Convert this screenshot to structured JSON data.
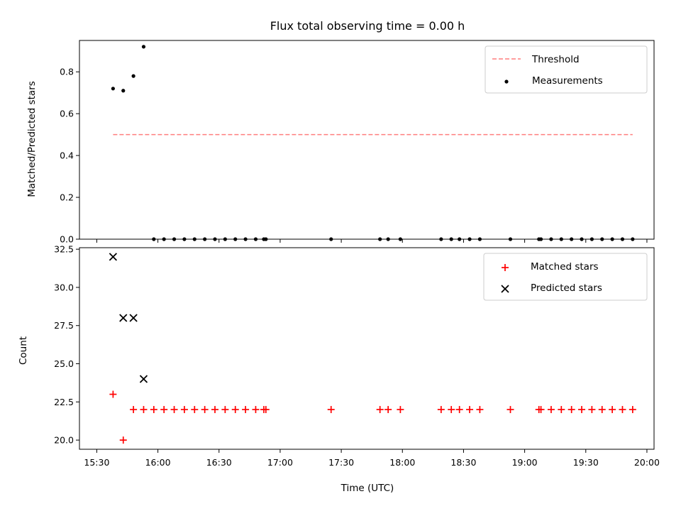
{
  "chart_data": [
    {
      "type": "scatter",
      "title": "Flux total observing time = 0.00 h",
      "xlabel": "",
      "ylabel": "Matched/Predicted stars",
      "xlim": [
        "15:30",
        "20:00"
      ],
      "ylim": [
        0,
        0.95
      ],
      "yticks": [
        "0.0",
        "0.2",
        "0.4",
        "0.6",
        "0.8"
      ],
      "ytick_values": [
        0,
        0.2,
        0.4,
        0.6,
        0.8
      ],
      "legend_position": "top-right",
      "series": [
        {
          "name": "Threshold",
          "style": "dashed-line",
          "color": "#ff7f7f",
          "x": [
            "15:38",
            "19:53"
          ],
          "y": [
            0.5,
            0.5
          ]
        },
        {
          "name": "Measurements",
          "style": "dot",
          "color": "#000000",
          "x": [
            "15:38",
            "15:43",
            "15:48",
            "15:53",
            "15:58",
            "16:03",
            "16:08",
            "16:13",
            "16:18",
            "16:23",
            "16:28",
            "16:33",
            "16:38",
            "16:43",
            "16:48",
            "16:52",
            "16:53",
            "17:25",
            "17:49",
            "17:53",
            "17:59",
            "18:19",
            "18:24",
            "18:28",
            "18:33",
            "18:38",
            "18:53",
            "19:07",
            "19:08",
            "19:13",
            "19:18",
            "19:23",
            "19:28",
            "19:33",
            "19:38",
            "19:43",
            "19:48",
            "19:53"
          ],
          "y": [
            0.72,
            0.71,
            0.78,
            0.92,
            0,
            0,
            0,
            0,
            0,
            0,
            0,
            0,
            0,
            0,
            0,
            0,
            0,
            0,
            0,
            0,
            0,
            0,
            0,
            0,
            0,
            0,
            0,
            0,
            0,
            0,
            0,
            0,
            0,
            0,
            0,
            0,
            0,
            0
          ]
        }
      ]
    },
    {
      "type": "scatter",
      "title": "",
      "xlabel": "Time (UTC)",
      "ylabel": "Count",
      "xlim": [
        "15:30",
        "20:00"
      ],
      "xticks": [
        "15:30",
        "16:00",
        "16:30",
        "17:00",
        "17:30",
        "18:00",
        "18:30",
        "19:00",
        "19:30",
        "20:00"
      ],
      "ylim": [
        19.4,
        32.6
      ],
      "yticks": [
        "20.0",
        "22.5",
        "25.0",
        "27.5",
        "30.0",
        "32.5"
      ],
      "ytick_values": [
        20,
        22.5,
        25,
        27.5,
        30,
        32.5
      ],
      "legend_position": "top-right",
      "series": [
        {
          "name": "Matched stars",
          "style": "plus",
          "color": "#ff0000",
          "x": [
            "15:38",
            "15:43",
            "15:48",
            "15:53",
            "15:58",
            "16:03",
            "16:08",
            "16:13",
            "16:18",
            "16:23",
            "16:28",
            "16:33",
            "16:38",
            "16:43",
            "16:48",
            "16:52",
            "16:53",
            "17:25",
            "17:49",
            "17:53",
            "17:59",
            "18:19",
            "18:24",
            "18:28",
            "18:33",
            "18:38",
            "18:53",
            "19:07",
            "19:08",
            "19:13",
            "19:18",
            "19:23",
            "19:28",
            "19:33",
            "19:38",
            "19:43",
            "19:48",
            "19:53"
          ],
          "y": [
            23,
            20,
            22,
            22,
            22,
            22,
            22,
            22,
            22,
            22,
            22,
            22,
            22,
            22,
            22,
            22,
            22,
            22,
            22,
            22,
            22,
            22,
            22,
            22,
            22,
            22,
            22,
            22,
            22,
            22,
            22,
            22,
            22,
            22,
            22,
            22,
            22,
            22
          ]
        },
        {
          "name": "Predicted stars",
          "style": "x",
          "color": "#000000",
          "x": [
            "15:38",
            "15:43",
            "15:48",
            "15:53"
          ],
          "y": [
            32,
            28,
            28,
            24
          ]
        }
      ]
    }
  ]
}
